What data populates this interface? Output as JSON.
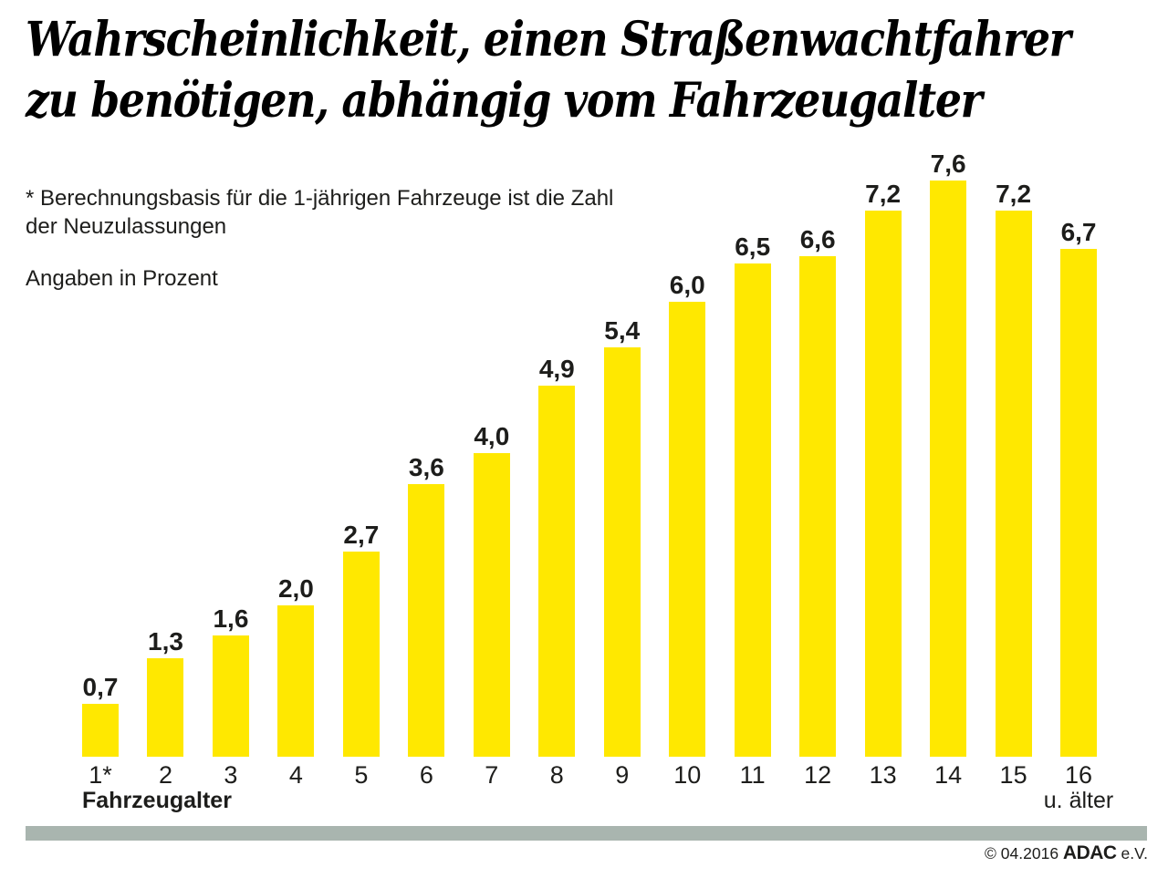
{
  "title": {
    "line1": "Wahrscheinlichkeit, einen Straßenwachtfahrer",
    "line2": "zu benötigen, abhängig vom Fahrzeugalter"
  },
  "notes": {
    "footnote_line1": "* Berechnungsbasis für die 1-jährigen Fahrzeuge ist die Zahl",
    "footnote_line2": "der Neuzulassungen",
    "unit_note": "Angaben in Prozent"
  },
  "chart_data": {
    "type": "bar",
    "title": "Wahrscheinlichkeit, einen Straßenwachtfahrer zu benötigen, abhängig vom Fahrzeugalter",
    "unit": "Prozent",
    "xlabel": "Fahrzeugalter",
    "last_category_suffix": "u. älter",
    "categories": [
      "1*",
      "2",
      "3",
      "4",
      "5",
      "6",
      "7",
      "8",
      "9",
      "10",
      "11",
      "12",
      "13",
      "14",
      "15",
      "16"
    ],
    "values": [
      0.7,
      1.3,
      1.6,
      2.0,
      2.7,
      3.6,
      4.0,
      4.9,
      5.4,
      6.0,
      6.5,
      6.6,
      7.2,
      7.6,
      7.2,
      6.7
    ],
    "value_labels": [
      "0,7",
      "1,3",
      "1,6",
      "2,0",
      "2,7",
      "3,6",
      "4,0",
      "4,9",
      "5,4",
      "6,0",
      "6,5",
      "6,6",
      "7,2",
      "7,6",
      "7,2",
      "6,7"
    ],
    "ylim": [
      0,
      8
    ],
    "grid": false,
    "legend": false,
    "bar_color": "#FFE800",
    "label_color": "#1D1D1B"
  },
  "footer": {
    "copyright_prefix": "© 04.2016",
    "brand": "ADAC",
    "suffix": "e.V.",
    "divider_color": "#A9B5AF"
  }
}
